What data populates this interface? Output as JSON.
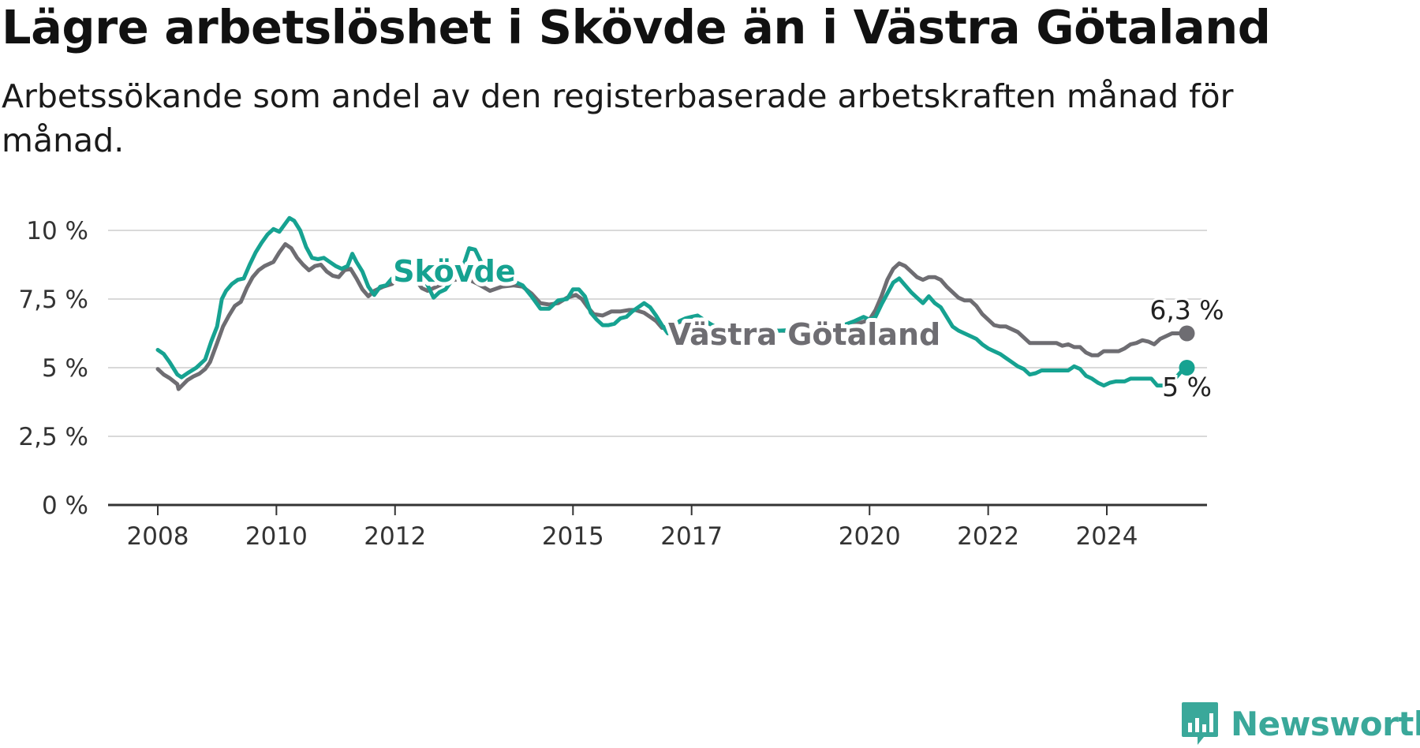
{
  "header": {
    "title": "Lägre arbetslöshet i Skövde än i Västra Götaland",
    "subtitle": "Arbetssökande som andel av den registerbaserade arbetskraften månad för månad."
  },
  "brand": {
    "name": "Newsworthy",
    "icon": "newsworthy-logo-icon",
    "color": "#3aa89a"
  },
  "chart_data": {
    "type": "line",
    "xlim": [
      2007.85,
      2025.85
    ],
    "ylim": [
      0,
      10
    ],
    "grid": true,
    "legend": "inline labels",
    "y_ticks": [
      {
        "value": 0,
        "label": "0 %"
      },
      {
        "value": 2.5,
        "label": "2,5 %"
      },
      {
        "value": 5,
        "label": "5 %"
      },
      {
        "value": 7.5,
        "label": "7,5 %"
      },
      {
        "value": 10,
        "label": "10 %"
      }
    ],
    "x_ticks": [
      {
        "value": 2008,
        "label": "2008"
      },
      {
        "value": 2010,
        "label": "2010"
      },
      {
        "value": 2012,
        "label": "2012"
      },
      {
        "value": 2015,
        "label": "2015"
      },
      {
        "value": 2017,
        "label": "2017"
      },
      {
        "value": 2020,
        "label": "2020"
      },
      {
        "value": 2022,
        "label": "2022"
      },
      {
        "value": 2024,
        "label": "2024"
      }
    ],
    "series": [
      {
        "name": "Västra Götaland",
        "color": "#6e6d72",
        "end_label": "6,3 %",
        "label_x": 2018.9,
        "label_y": 6.2,
        "points": [
          [
            2008.0,
            4.95
          ],
          [
            2008.1,
            4.75
          ],
          [
            2008.2,
            4.62
          ],
          [
            2008.33,
            4.4
          ],
          [
            2008.35,
            4.22
          ],
          [
            2008.5,
            4.55
          ],
          [
            2008.6,
            4.68
          ],
          [
            2008.7,
            4.78
          ],
          [
            2008.8,
            4.95
          ],
          [
            2008.88,
            5.2
          ],
          [
            2009.0,
            5.9
          ],
          [
            2009.1,
            6.5
          ],
          [
            2009.2,
            6.9
          ],
          [
            2009.3,
            7.25
          ],
          [
            2009.4,
            7.4
          ],
          [
            2009.5,
            7.9
          ],
          [
            2009.6,
            8.3
          ],
          [
            2009.7,
            8.55
          ],
          [
            2009.8,
            8.7
          ],
          [
            2009.95,
            8.85
          ],
          [
            2010.05,
            9.2
          ],
          [
            2010.15,
            9.5
          ],
          [
            2010.25,
            9.35
          ],
          [
            2010.35,
            9.0
          ],
          [
            2010.45,
            8.75
          ],
          [
            2010.55,
            8.55
          ],
          [
            2010.65,
            8.7
          ],
          [
            2010.75,
            8.75
          ],
          [
            2010.85,
            8.5
          ],
          [
            2010.95,
            8.35
          ],
          [
            2011.05,
            8.3
          ],
          [
            2011.15,
            8.55
          ],
          [
            2011.25,
            8.6
          ],
          [
            2011.35,
            8.25
          ],
          [
            2011.45,
            7.85
          ],
          [
            2011.55,
            7.6
          ],
          [
            2011.65,
            7.8
          ],
          [
            2011.8,
            7.95
          ],
          [
            2011.95,
            8.05
          ],
          [
            2012.05,
            8.3
          ],
          [
            2012.15,
            8.55
          ],
          [
            2012.25,
            8.35
          ],
          [
            2012.35,
            8.2
          ],
          [
            2012.45,
            7.9
          ],
          [
            2012.55,
            7.8
          ],
          [
            2012.65,
            7.9
          ],
          [
            2012.75,
            8.0
          ],
          [
            2012.85,
            8.1
          ],
          [
            2013.0,
            8.2
          ],
          [
            2013.2,
            8.25
          ],
          [
            2013.4,
            8.05
          ],
          [
            2013.6,
            7.8
          ],
          [
            2013.8,
            7.95
          ],
          [
            2014.0,
            8.0
          ],
          [
            2014.15,
            7.95
          ],
          [
            2014.3,
            7.7
          ],
          [
            2014.45,
            7.35
          ],
          [
            2014.6,
            7.3
          ],
          [
            2014.75,
            7.35
          ],
          [
            2014.9,
            7.55
          ],
          [
            2015.05,
            7.65
          ],
          [
            2015.15,
            7.5
          ],
          [
            2015.25,
            7.2
          ],
          [
            2015.35,
            6.95
          ],
          [
            2015.5,
            6.9
          ],
          [
            2015.65,
            7.05
          ],
          [
            2015.8,
            7.05
          ],
          [
            2015.95,
            7.1
          ],
          [
            2016.05,
            7.1
          ],
          [
            2016.2,
            7.0
          ],
          [
            2016.3,
            6.85
          ],
          [
            2016.4,
            6.7
          ],
          [
            2016.5,
            6.45
          ],
          [
            2016.6,
            6.5
          ],
          [
            2016.75,
            6.65
          ],
          [
            2016.9,
            6.7
          ],
          [
            2017.05,
            6.75
          ],
          [
            2017.2,
            6.7
          ],
          [
            2017.35,
            6.55
          ],
          [
            2017.5,
            6.35
          ],
          [
            2017.7,
            6.2
          ],
          [
            2018.0,
            6.3
          ],
          [
            2018.5,
            6.35
          ],
          [
            2019.0,
            6.3
          ],
          [
            2019.5,
            6.45
          ],
          [
            2019.8,
            6.6
          ],
          [
            2020.0,
            6.75
          ],
          [
            2020.1,
            7.1
          ],
          [
            2020.2,
            7.6
          ],
          [
            2020.3,
            8.2
          ],
          [
            2020.4,
            8.6
          ],
          [
            2020.5,
            8.8
          ],
          [
            2020.6,
            8.7
          ],
          [
            2020.7,
            8.5
          ],
          [
            2020.8,
            8.3
          ],
          [
            2020.9,
            8.2
          ],
          [
            2021.0,
            8.3
          ],
          [
            2021.1,
            8.3
          ],
          [
            2021.2,
            8.2
          ],
          [
            2021.3,
            7.95
          ],
          [
            2021.4,
            7.75
          ],
          [
            2021.5,
            7.55
          ],
          [
            2021.6,
            7.45
          ],
          [
            2021.7,
            7.45
          ],
          [
            2021.8,
            7.25
          ],
          [
            2021.9,
            6.95
          ],
          [
            2022.0,
            6.75
          ],
          [
            2022.1,
            6.55
          ],
          [
            2022.2,
            6.5
          ],
          [
            2022.3,
            6.5
          ],
          [
            2022.4,
            6.4
          ],
          [
            2022.5,
            6.3
          ],
          [
            2022.6,
            6.1
          ],
          [
            2022.7,
            5.9
          ],
          [
            2022.8,
            5.9
          ],
          [
            2022.9,
            5.9
          ],
          [
            2023.0,
            5.9
          ],
          [
            2023.15,
            5.9
          ],
          [
            2023.25,
            5.8
          ],
          [
            2023.35,
            5.85
          ],
          [
            2023.45,
            5.75
          ],
          [
            2023.55,
            5.75
          ],
          [
            2023.65,
            5.55
          ],
          [
            2023.75,
            5.45
          ],
          [
            2023.85,
            5.45
          ],
          [
            2023.95,
            5.6
          ],
          [
            2024.1,
            5.6
          ],
          [
            2024.2,
            5.6
          ],
          [
            2024.3,
            5.7
          ],
          [
            2024.4,
            5.85
          ],
          [
            2024.5,
            5.9
          ],
          [
            2024.6,
            6.0
          ],
          [
            2024.7,
            5.95
          ],
          [
            2024.8,
            5.85
          ],
          [
            2024.9,
            6.05
          ],
          [
            2025.0,
            6.15
          ],
          [
            2025.1,
            6.25
          ],
          [
            2025.2,
            6.25
          ],
          [
            2025.35,
            6.25
          ]
        ]
      },
      {
        "name": "Skövde",
        "color": "#16a291",
        "end_label": "5 %",
        "label_x": 2013.0,
        "label_y": 8.5,
        "points": [
          [
            2008.0,
            5.65
          ],
          [
            2008.1,
            5.5
          ],
          [
            2008.2,
            5.2
          ],
          [
            2008.33,
            4.75
          ],
          [
            2008.4,
            4.65
          ],
          [
            2008.5,
            4.8
          ],
          [
            2008.65,
            5.0
          ],
          [
            2008.8,
            5.3
          ],
          [
            2008.9,
            5.95
          ],
          [
            2009.0,
            6.5
          ],
          [
            2009.08,
            7.5
          ],
          [
            2009.15,
            7.8
          ],
          [
            2009.25,
            8.05
          ],
          [
            2009.35,
            8.2
          ],
          [
            2009.45,
            8.25
          ],
          [
            2009.55,
            8.75
          ],
          [
            2009.65,
            9.2
          ],
          [
            2009.75,
            9.55
          ],
          [
            2009.85,
            9.85
          ],
          [
            2009.95,
            10.05
          ],
          [
            2010.05,
            9.95
          ],
          [
            2010.15,
            10.25
          ],
          [
            2010.22,
            10.45
          ],
          [
            2010.3,
            10.35
          ],
          [
            2010.4,
            10.0
          ],
          [
            2010.5,
            9.4
          ],
          [
            2010.6,
            9.0
          ],
          [
            2010.7,
            8.95
          ],
          [
            2010.8,
            9.0
          ],
          [
            2010.9,
            8.85
          ],
          [
            2011.0,
            8.7
          ],
          [
            2011.1,
            8.6
          ],
          [
            2011.2,
            8.7
          ],
          [
            2011.28,
            9.15
          ],
          [
            2011.35,
            8.85
          ],
          [
            2011.45,
            8.5
          ],
          [
            2011.55,
            7.95
          ],
          [
            2011.65,
            7.65
          ],
          [
            2011.75,
            7.95
          ],
          [
            2011.85,
            8.0
          ],
          [
            2011.95,
            8.25
          ],
          [
            2012.05,
            8.3
          ],
          [
            2012.15,
            8.3
          ],
          [
            2012.25,
            8.7
          ],
          [
            2012.35,
            8.75
          ],
          [
            2012.45,
            8.4
          ],
          [
            2012.55,
            8.0
          ],
          [
            2012.65,
            7.55
          ],
          [
            2012.75,
            7.75
          ],
          [
            2012.85,
            7.85
          ],
          [
            2012.95,
            8.15
          ],
          [
            2013.05,
            8.45
          ],
          [
            2013.15,
            8.7
          ],
          [
            2013.25,
            9.35
          ],
          [
            2013.35,
            9.3
          ],
          [
            2013.45,
            8.85
          ],
          [
            2013.6,
            8.5
          ],
          [
            2013.8,
            8.4
          ],
          [
            2014.0,
            8.15
          ],
          [
            2014.15,
            8.0
          ],
          [
            2014.3,
            7.6
          ],
          [
            2014.45,
            7.15
          ],
          [
            2014.6,
            7.15
          ],
          [
            2014.75,
            7.45
          ],
          [
            2014.9,
            7.5
          ],
          [
            2015.0,
            7.85
          ],
          [
            2015.1,
            7.85
          ],
          [
            2015.2,
            7.6
          ],
          [
            2015.3,
            7.0
          ],
          [
            2015.4,
            6.75
          ],
          [
            2015.5,
            6.55
          ],
          [
            2015.6,
            6.55
          ],
          [
            2015.7,
            6.6
          ],
          [
            2015.8,
            6.8
          ],
          [
            2015.9,
            6.85
          ],
          [
            2016.0,
            7.05
          ],
          [
            2016.1,
            7.2
          ],
          [
            2016.2,
            7.35
          ],
          [
            2016.3,
            7.2
          ],
          [
            2016.4,
            6.9
          ],
          [
            2016.5,
            6.55
          ],
          [
            2016.6,
            6.25
          ],
          [
            2016.7,
            6.5
          ],
          [
            2016.8,
            6.7
          ],
          [
            2016.9,
            6.8
          ],
          [
            2017.0,
            6.85
          ],
          [
            2017.1,
            6.9
          ],
          [
            2017.2,
            6.75
          ],
          [
            2017.35,
            6.55
          ],
          [
            2017.5,
            6.4
          ],
          [
            2017.75,
            6.3
          ],
          [
            2018.0,
            6.3
          ],
          [
            2018.5,
            6.35
          ],
          [
            2019.0,
            6.4
          ],
          [
            2019.5,
            6.5
          ],
          [
            2019.75,
            6.7
          ],
          [
            2019.9,
            6.85
          ],
          [
            2020.0,
            6.75
          ],
          [
            2020.1,
            6.85
          ],
          [
            2020.2,
            7.3
          ],
          [
            2020.3,
            7.7
          ],
          [
            2020.4,
            8.1
          ],
          [
            2020.5,
            8.25
          ],
          [
            2020.6,
            8.0
          ],
          [
            2020.7,
            7.75
          ],
          [
            2020.8,
            7.55
          ],
          [
            2020.9,
            7.35
          ],
          [
            2021.0,
            7.6
          ],
          [
            2021.1,
            7.35
          ],
          [
            2021.2,
            7.2
          ],
          [
            2021.3,
            6.85
          ],
          [
            2021.4,
            6.5
          ],
          [
            2021.5,
            6.35
          ],
          [
            2021.6,
            6.25
          ],
          [
            2021.7,
            6.15
          ],
          [
            2021.8,
            6.05
          ],
          [
            2021.9,
            5.85
          ],
          [
            2022.0,
            5.7
          ],
          [
            2022.1,
            5.6
          ],
          [
            2022.2,
            5.5
          ],
          [
            2022.3,
            5.35
          ],
          [
            2022.4,
            5.2
          ],
          [
            2022.5,
            5.05
          ],
          [
            2022.6,
            4.95
          ],
          [
            2022.7,
            4.75
          ],
          [
            2022.8,
            4.8
          ],
          [
            2022.9,
            4.9
          ],
          [
            2023.0,
            4.9
          ],
          [
            2023.15,
            4.9
          ],
          [
            2023.25,
            4.9
          ],
          [
            2023.35,
            4.9
          ],
          [
            2023.45,
            5.05
          ],
          [
            2023.55,
            4.95
          ],
          [
            2023.65,
            4.7
          ],
          [
            2023.75,
            4.6
          ],
          [
            2023.85,
            4.45
          ],
          [
            2023.95,
            4.35
          ],
          [
            2024.05,
            4.45
          ],
          [
            2024.15,
            4.5
          ],
          [
            2024.3,
            4.5
          ],
          [
            2024.4,
            4.6
          ],
          [
            2024.5,
            4.6
          ],
          [
            2024.65,
            4.6
          ],
          [
            2024.75,
            4.6
          ],
          [
            2024.85,
            4.35
          ],
          [
            2024.95,
            4.35
          ],
          [
            2025.05,
            4.45
          ],
          [
            2025.15,
            4.6
          ],
          [
            2025.25,
            4.85
          ],
          [
            2025.35,
            5.0
          ]
        ]
      }
    ]
  }
}
